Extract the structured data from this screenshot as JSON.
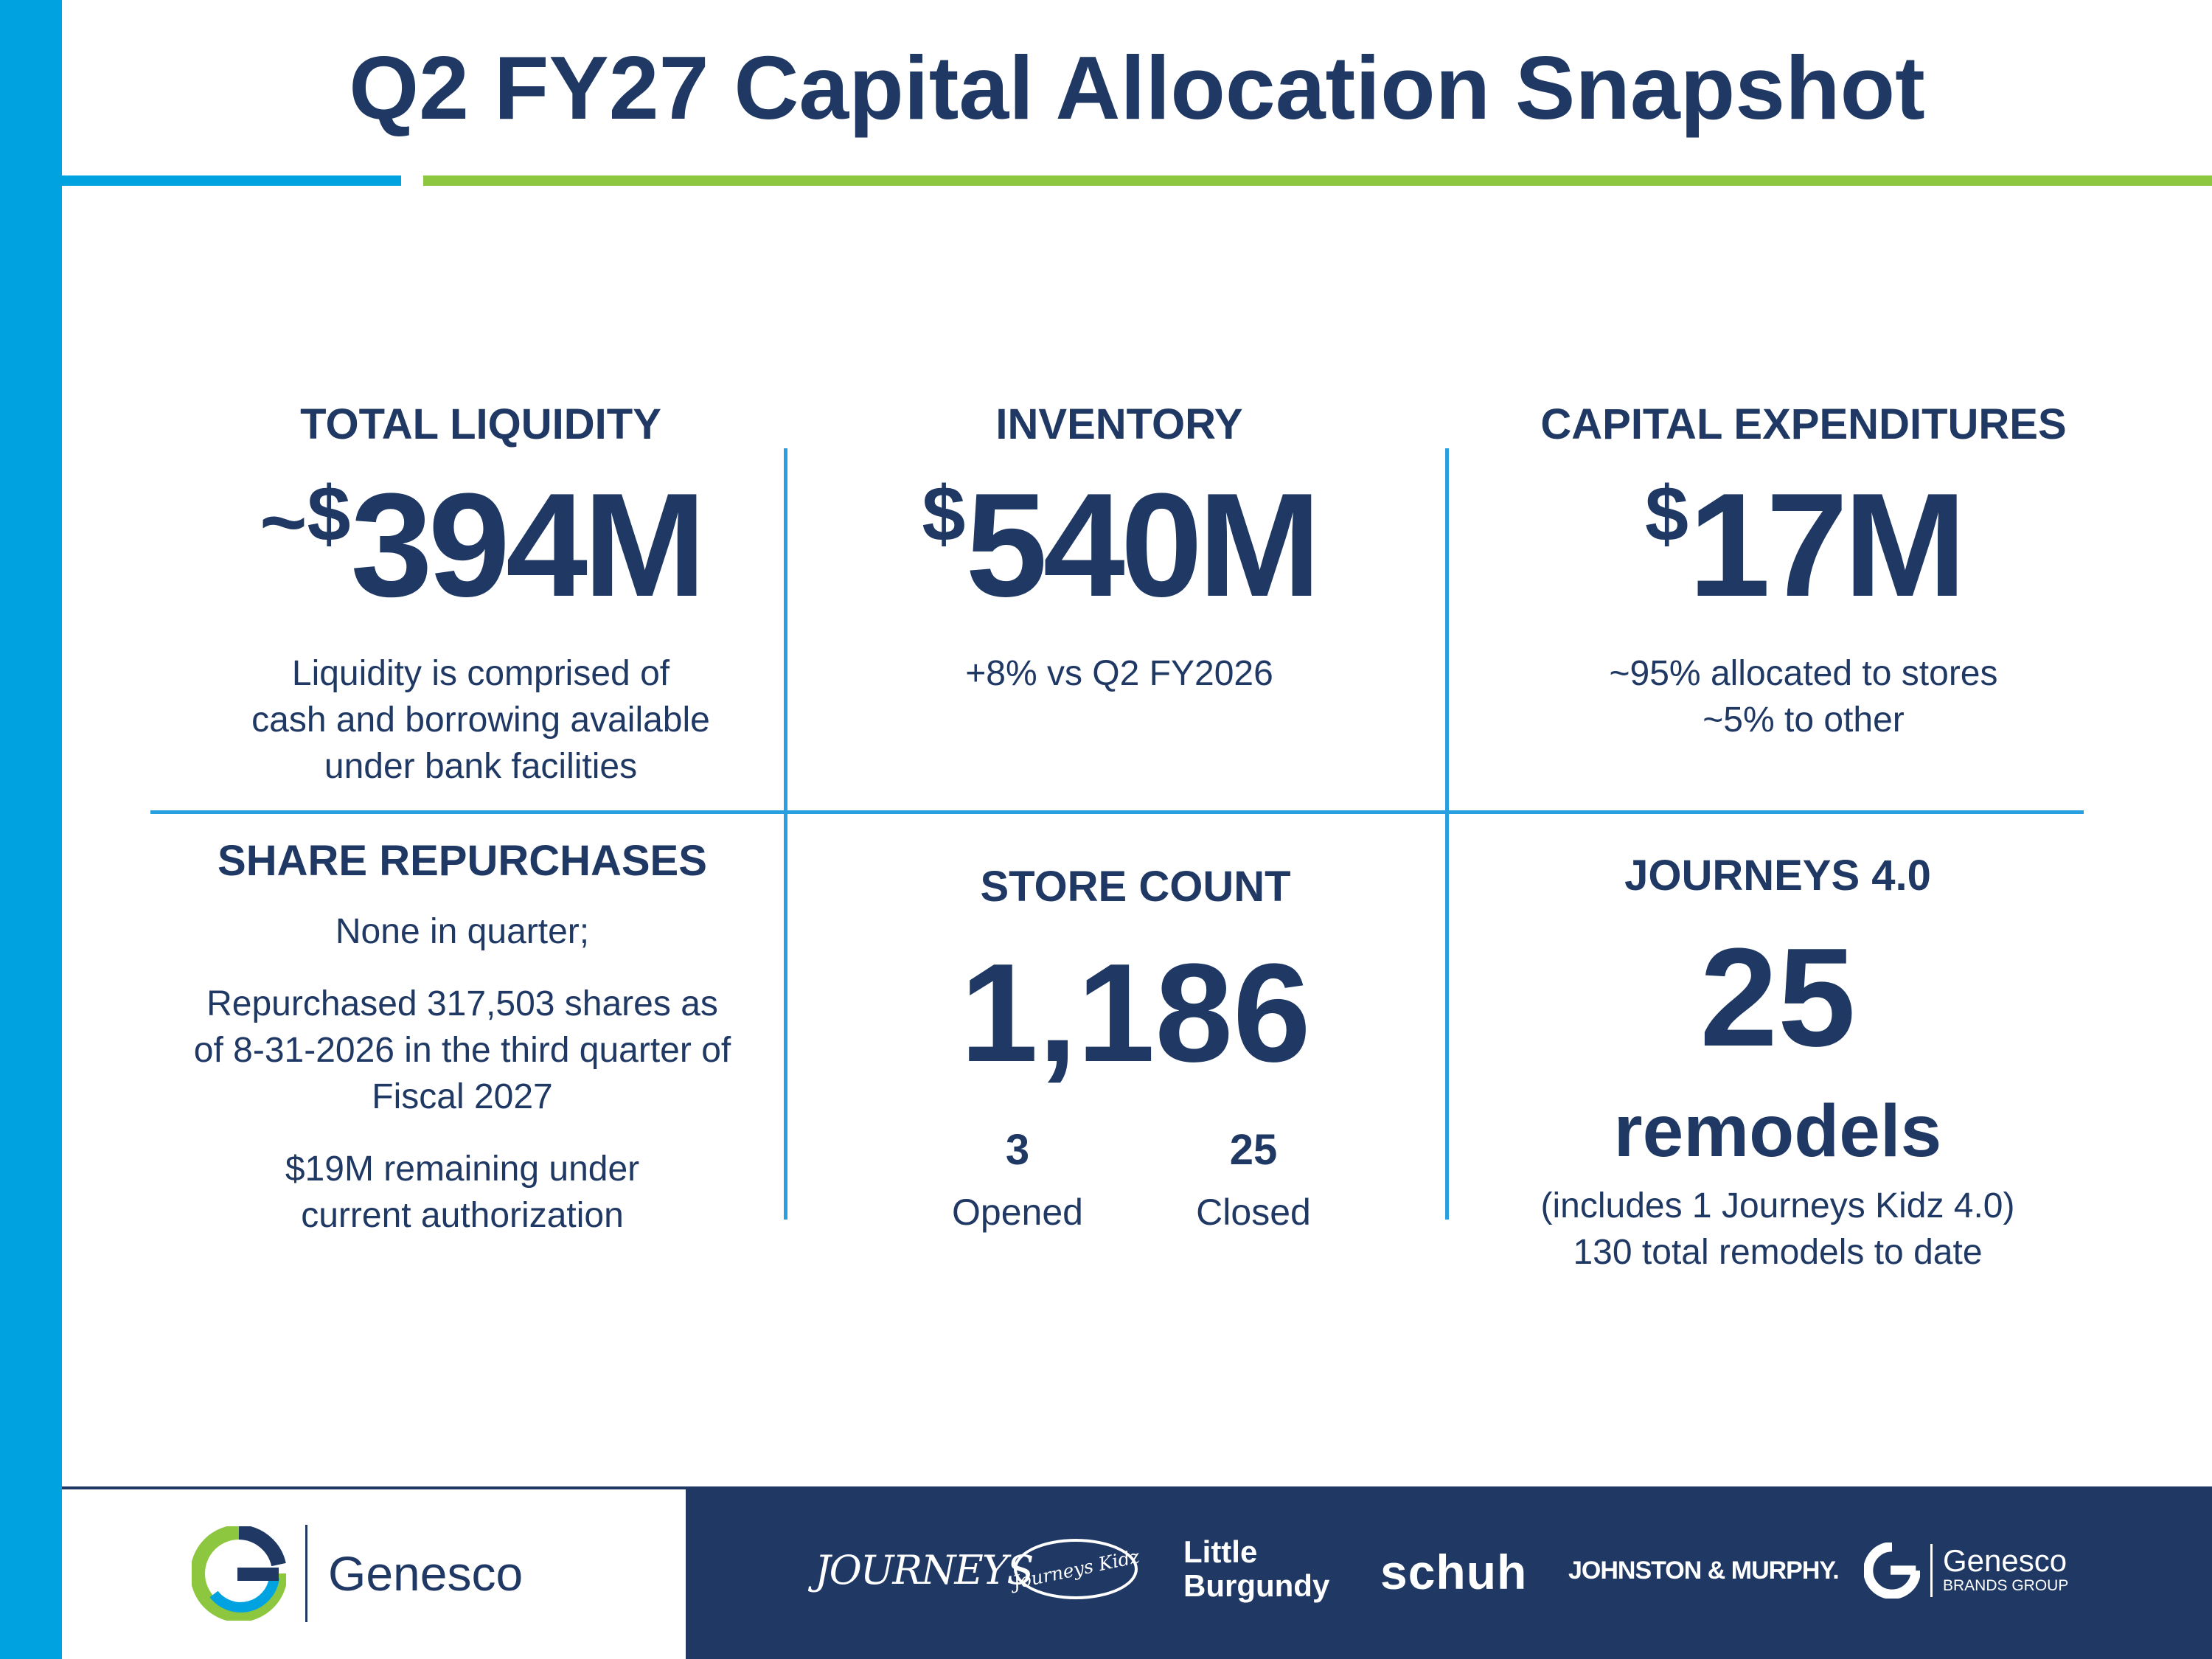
{
  "title": "Q2 FY27 Capital Allocation Snapshot",
  "colors": {
    "navy": "#1f3864",
    "blue": "#00a3e0",
    "green": "#8dc63f"
  },
  "liquidity": {
    "heading": "TOTAL LIQUIDITY",
    "prefix": "~",
    "currency": "$",
    "value": "394M",
    "lines": [
      "Liquidity is comprised of",
      "cash and borrowing available",
      "under bank facilities"
    ]
  },
  "inventory": {
    "heading": "INVENTORY",
    "currency": "$",
    "value": "540M",
    "lines": [
      "+8% vs Q2 FY2026"
    ]
  },
  "capex": {
    "heading": "CAPITAL EXPENDITURES",
    "currency": "$",
    "value": "17M",
    "lines": [
      "~95% allocated to stores",
      "~5% to other"
    ]
  },
  "repurchases": {
    "heading": "SHARE REPURCHASES",
    "para1": [
      "None in quarter;"
    ],
    "para2": [
      "Repurchased 317,503 shares as",
      "of 8-31-2026 in the third quarter of",
      "Fiscal 2027"
    ],
    "para3": [
      "$19M remaining under",
      "current authorization"
    ]
  },
  "store_count": {
    "heading": "STORE COUNT",
    "value": "1,186",
    "opened_value": "3",
    "opened_label": "Opened",
    "closed_value": "25",
    "closed_label": "Closed"
  },
  "journeys": {
    "heading": "JOURNEYS 4.0",
    "value": "25",
    "unit": "remodels",
    "lines": [
      "(includes 1 Journeys Kidz 4.0)",
      "130 total remodels to date"
    ]
  },
  "footer": {
    "company": "Genesco",
    "brands": {
      "journeys": "JOURNEYS",
      "journeys_kidz": "Journeys Kidz",
      "little_burgundy_1": "Little",
      "little_burgundy_2": "Burgundy",
      "schuh": "schuh",
      "johnston_murphy": "JOHNSTON & MURPHY.",
      "gbg_name": "Genesco",
      "gbg_sub": "BRANDS GROUP"
    }
  }
}
